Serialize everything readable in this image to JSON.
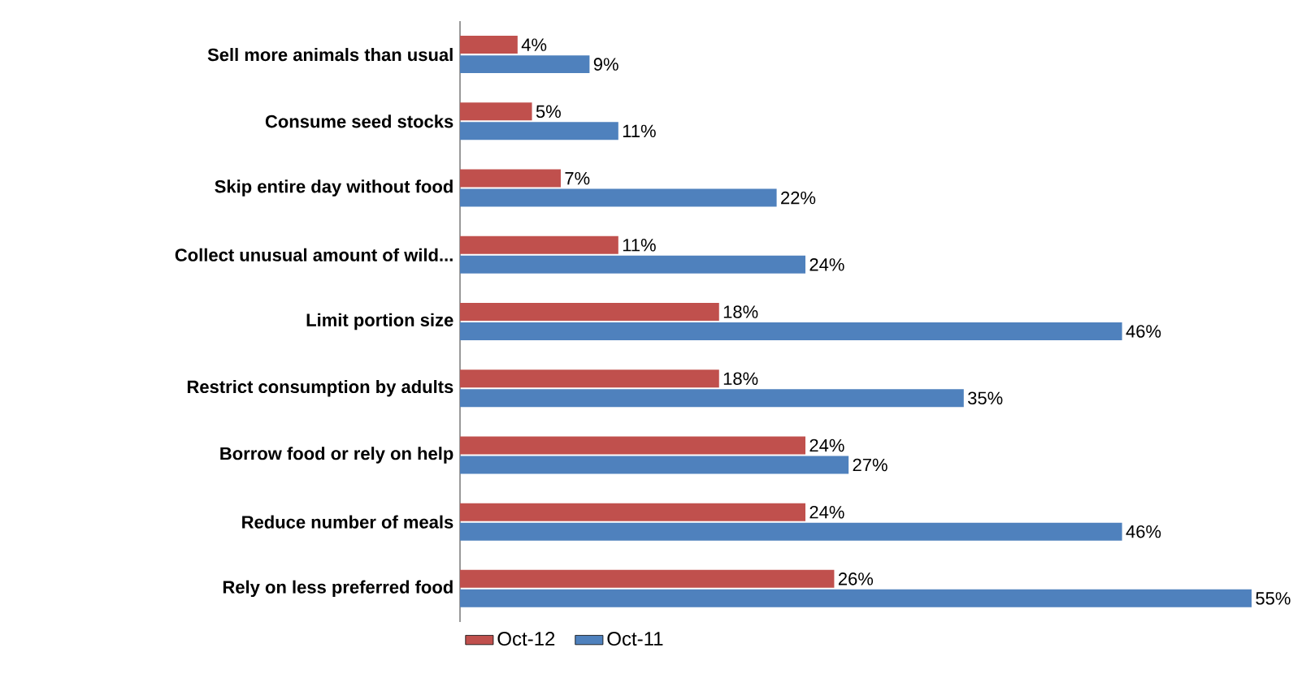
{
  "chart_data": {
    "type": "bar",
    "orientation": "horizontal",
    "categories": [
      "Sell more animals than usual",
      "Consume seed stocks",
      "Skip entire day without food",
      "Collect unusual amount of wild...",
      "Limit portion size",
      "Restrict consumption by adults",
      "Borrow food or rely on help",
      "Reduce number of meals",
      "Rely on less preferred food"
    ],
    "series": [
      {
        "name": "Oct-12",
        "color": "#c0504d",
        "values": [
          4,
          5,
          7,
          11,
          18,
          18,
          24,
          24,
          26
        ],
        "value_labels": [
          "4%",
          "5%",
          "7%",
          "11%",
          "18%",
          "18%",
          "24%",
          "24%",
          "26%"
        ]
      },
      {
        "name": "Oct-11",
        "color": "#4f81bd",
        "values": [
          9,
          11,
          22,
          24,
          46,
          35,
          27,
          46,
          55
        ],
        "value_labels": [
          "9%",
          "11%",
          "22%",
          "24%",
          "46%",
          "35%",
          "27%",
          "46%",
          "55%"
        ]
      }
    ],
    "legend": "bottom"
  }
}
